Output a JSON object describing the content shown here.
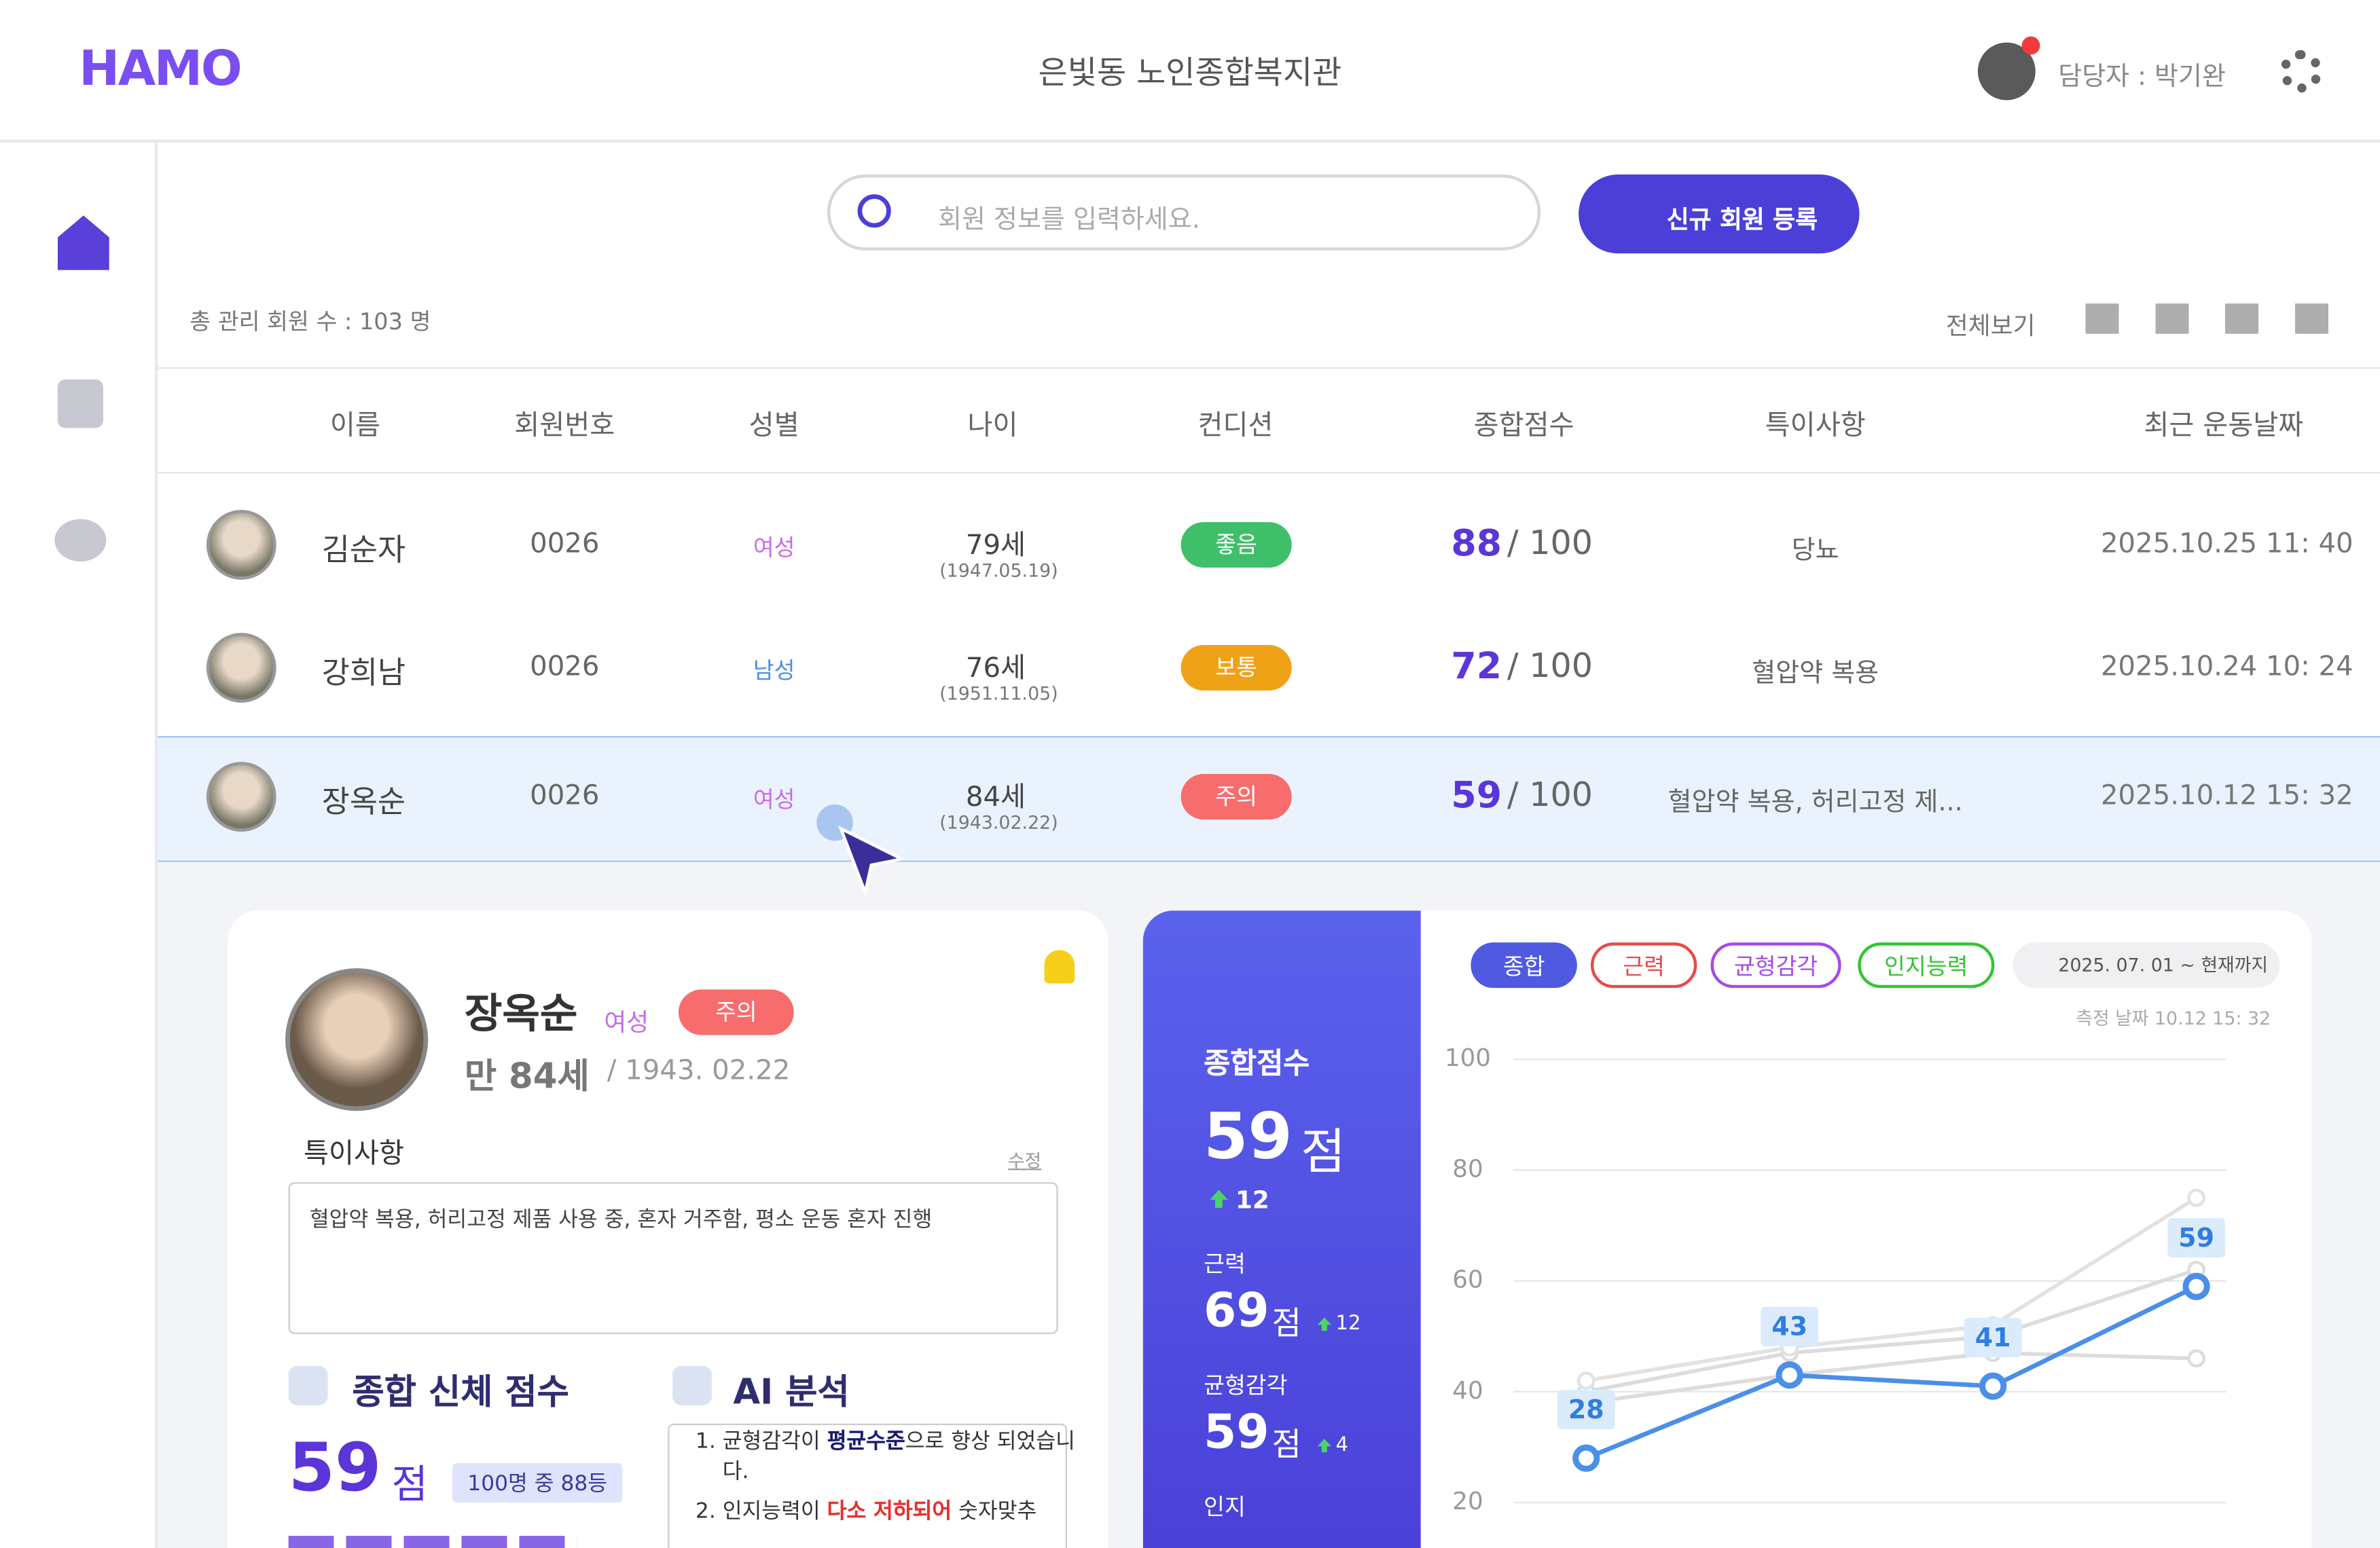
{
  "header": {
    "logo": "HAMO",
    "center_name": "은빛동 노인종합복지관",
    "manager": "담당자 : 박기완"
  },
  "search": {
    "placeholder": "회원 정보를 입력하세요.",
    "button": "신규 회원 등록"
  },
  "toolbar": {
    "total": "총 관리 회원 수 :  103 명",
    "view_all": "전체보기"
  },
  "table": {
    "columns": [
      "이름",
      "회원번호",
      "성별",
      "나이",
      "컨디션",
      "종합점수",
      "특이사항",
      "최근 운동날짜"
    ],
    "rows": [
      {
        "name": "김순자",
        "number": "0026",
        "gender": "여성",
        "age": "79세",
        "birth": "(1947.05.19)",
        "condition": "좋음",
        "score": "88",
        "max": "/ 100",
        "note": "당뇨",
        "date": "2025.10.25 11: 40"
      },
      {
        "name": "강희남",
        "number": "0026",
        "gender": "남성",
        "age": "76세",
        "birth": "(1951.11.05)",
        "condition": "보통",
        "score": "72",
        "max": "/ 100",
        "note": "혈압약 복용",
        "date": "2025.10.24 10: 24"
      },
      {
        "name": "장옥순",
        "number": "0026",
        "gender": "여성",
        "age": "84세",
        "birth": "(1943.02.22)",
        "condition": "주의",
        "score": "59",
        "max": "/ 100",
        "note": "혈압약 복용, 허리고정 제...",
        "date": "2025.10.12 15: 32"
      }
    ]
  },
  "detail": {
    "name": "장옥순",
    "gender": "여성",
    "status": "주의",
    "age": "만 84세",
    "birth": "/ 1943. 02.22",
    "notes_title": "특이사항",
    "edit": "수정",
    "notes": "혈압약 복용, 허리고정 제품 사용 중, 혼자 거주함, 평소 운동 혼자 진행",
    "body_title": "종합 신체 점수",
    "body_score": "59",
    "unit": "점",
    "rank": "100명 중 88등",
    "ai_title": "AI 분석",
    "ai_items": [
      [
        {
          "text": "균형감각이 "
        },
        {
          "text": "평균수준",
          "color": "#1b1b6e"
        },
        {
          "text": "으로 향상 되었습니다."
        }
      ],
      [
        {
          "text": "인지능력이 "
        },
        {
          "text": "다소 저하되어",
          "color": "#e5322d"
        },
        {
          "text": " 숫자맞추"
        }
      ]
    ]
  },
  "score_panel": {
    "title": "종합점수",
    "total": "59",
    "unit": "점",
    "delta": "12",
    "items": [
      {
        "label": "근력",
        "value": "69",
        "delta": "12"
      },
      {
        "label": "균형감각",
        "value": "59",
        "delta": "4"
      },
      {
        "label": "인지"
      }
    ]
  },
  "chart_data": {
    "type": "line",
    "tabs": [
      {
        "name": "종합",
        "color": "#4f5ae0"
      },
      {
        "name": "근력",
        "color": "#e84a4a"
      },
      {
        "name": "균형감각",
        "color": "#a64ae8"
      },
      {
        "name": "인지능력",
        "color": "#33c433"
      }
    ],
    "date_range": "2025. 07. 01 ~ 현재까지",
    "measured": "측정 날짜 10.12 15: 32",
    "ylim": [
      20,
      100
    ],
    "yticks": [
      100,
      80,
      60,
      40,
      20
    ],
    "grid": true,
    "series": [
      {
        "color": "#dcdcdc",
        "values": [
          40,
          47,
          50,
          62
        ]
      },
      {
        "color": "#dcdcdc",
        "values": [
          38,
          43,
          47,
          46
        ]
      },
      {
        "color": "#e2e2e2",
        "values": [
          42,
          48,
          52,
          75
        ]
      },
      {
        "color": "#4a8fe8",
        "values": [
          28,
          43,
          41,
          59
        ],
        "labels": true
      }
    ]
  }
}
